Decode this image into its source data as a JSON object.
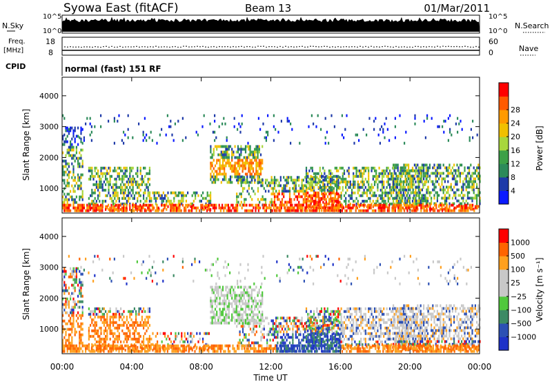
{
  "header": {
    "station": "Syowa East (fitACF)",
    "beam": "Beam 13",
    "date": "01/Mar/2011"
  },
  "top_panels": {
    "nsky_label": "N.Sky",
    "nsky_ticks": [
      "10^5",
      "10^0"
    ],
    "nsearch_label": "N.Search",
    "nsearch_ticks": [
      "10^5",
      "10^0"
    ],
    "freq_label": "Freq.",
    "freq_unit": "[MHz]",
    "freq_ticks": [
      "18",
      "8"
    ],
    "nave_label": "Nave",
    "nave_ticks": [
      "60",
      "0"
    ],
    "cpid_label": "CPID",
    "cpid_value": "normal (fast) 151 RF"
  },
  "colors": {
    "power_scale": [
      "#0a1aff",
      "#1e3aa8",
      "#2c8a5a",
      "#3ca047",
      "#a8d63c",
      "#f0c000",
      "#ff9a00",
      "#ff5a00",
      "#ff0000"
    ],
    "velocity_scale": [
      "#1e32c8",
      "#2c50b4",
      "#3c8a64",
      "#50c83c",
      "#c8c8c8",
      "#c8c8c8",
      "#ffa01e",
      "#ff6400",
      "#ff0000"
    ]
  },
  "chart_data": [
    {
      "type": "heatmap",
      "name": "power",
      "ylabel": "Slant Range [km]",
      "yticks": [
        "1000",
        "2000",
        "3000",
        "4000"
      ],
      "ylim": [
        200,
        4600
      ],
      "colorbar_label": "Power [dB]",
      "colorbar_ticks": [
        "4",
        "8",
        "12",
        "16",
        "20",
        "24",
        "28"
      ],
      "colorbar_range": [
        0,
        32
      ]
    },
    {
      "type": "heatmap",
      "name": "velocity",
      "ylabel": "Slant Range [km]",
      "yticks": [
        "1000",
        "2000",
        "3000",
        "4000"
      ],
      "ylim": [
        200,
        4600
      ],
      "colorbar_label": "Velocity [m s⁻¹]",
      "colorbar_ticks": [
        "1000",
        "500",
        "100",
        "25",
        "−25",
        "−100",
        "−500",
        "−1000"
      ]
    }
  ],
  "time_axis": {
    "label": "Time UT",
    "ticks": [
      "00:00",
      "04:00",
      "08:00",
      "12:00",
      "16:00",
      "20:00",
      "00:00"
    ],
    "range_hours": [
      0,
      24
    ]
  }
}
